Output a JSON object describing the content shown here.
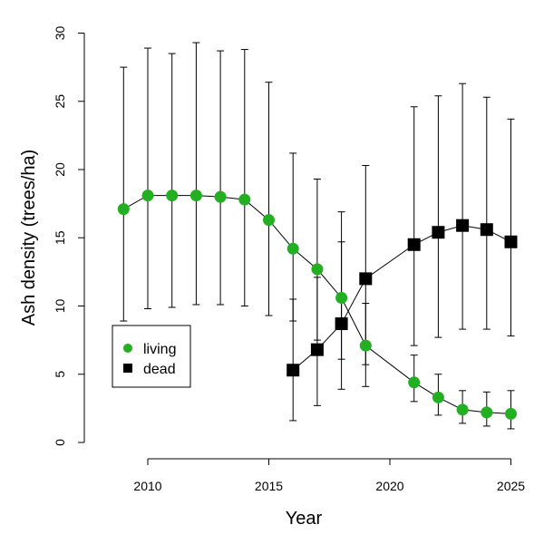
{
  "chart_data": {
    "type": "line",
    "xlabel": "Year",
    "ylabel": "Ash density (trees/ha)",
    "xlim": [
      2008,
      2026
    ],
    "ylim": [
      0,
      30
    ],
    "x_ticks": [
      "2010",
      "2015",
      "2020",
      "2025"
    ],
    "y_ticks": [
      "0",
      "5",
      "10",
      "15",
      "20",
      "25",
      "30"
    ],
    "grid": false,
    "legend_position": "left-middle",
    "series": [
      {
        "name": "living",
        "color": "#22b022",
        "marker": "circle",
        "points": [
          {
            "x": 2009,
            "y": 17.1,
            "lo": 8.9,
            "hi": 27.5
          },
          {
            "x": 2010,
            "y": 18.1,
            "lo": 9.8,
            "hi": 28.9
          },
          {
            "x": 2011,
            "y": 18.1,
            "lo": 9.9,
            "hi": 28.5
          },
          {
            "x": 2012,
            "y": 18.1,
            "lo": 10.1,
            "hi": 29.3
          },
          {
            "x": 2013,
            "y": 18.0,
            "lo": 10.1,
            "hi": 28.7
          },
          {
            "x": 2014,
            "y": 17.8,
            "lo": 10.0,
            "hi": 28.8
          },
          {
            "x": 2015,
            "y": 16.3,
            "lo": 9.3,
            "hi": 26.4
          },
          {
            "x": 2016,
            "y": 14.2,
            "lo": 8.9,
            "hi": 21.2
          },
          {
            "x": 2017,
            "y": 12.7,
            "lo": 7.5,
            "hi": 19.3
          },
          {
            "x": 2018,
            "y": 10.6,
            "lo": 6.1,
            "hi": 14.7
          },
          {
            "x": 2019,
            "y": 7.1,
            "lo": 4.1,
            "hi": 10.2
          },
          {
            "x": 2021,
            "y": 4.4,
            "lo": 3.0,
            "hi": 6.4
          },
          {
            "x": 2022,
            "y": 3.3,
            "lo": 2.0,
            "hi": 5.0
          },
          {
            "x": 2023,
            "y": 2.4,
            "lo": 1.4,
            "hi": 3.8
          },
          {
            "x": 2024,
            "y": 2.2,
            "lo": 1.2,
            "hi": 3.7
          },
          {
            "x": 2025,
            "y": 2.1,
            "lo": 1.0,
            "hi": 3.8
          }
        ]
      },
      {
        "name": "dead",
        "color": "#000000",
        "marker": "square",
        "points": [
          {
            "x": 2016,
            "y": 5.3,
            "lo": 1.6,
            "hi": 10.5
          },
          {
            "x": 2017,
            "y": 6.8,
            "lo": 2.7,
            "hi": 12.1
          },
          {
            "x": 2018,
            "y": 8.7,
            "lo": 3.9,
            "hi": 16.9
          },
          {
            "x": 2019,
            "y": 12.0,
            "lo": 5.7,
            "hi": 20.3
          },
          {
            "x": 2021,
            "y": 14.5,
            "lo": 7.1,
            "hi": 24.6
          },
          {
            "x": 2022,
            "y": 15.4,
            "lo": 7.7,
            "hi": 25.4
          },
          {
            "x": 2023,
            "y": 15.9,
            "lo": 8.3,
            "hi": 26.3
          },
          {
            "x": 2024,
            "y": 15.6,
            "lo": 8.3,
            "hi": 25.3
          },
          {
            "x": 2025,
            "y": 14.7,
            "lo": 7.8,
            "hi": 23.7
          }
        ]
      }
    ]
  }
}
